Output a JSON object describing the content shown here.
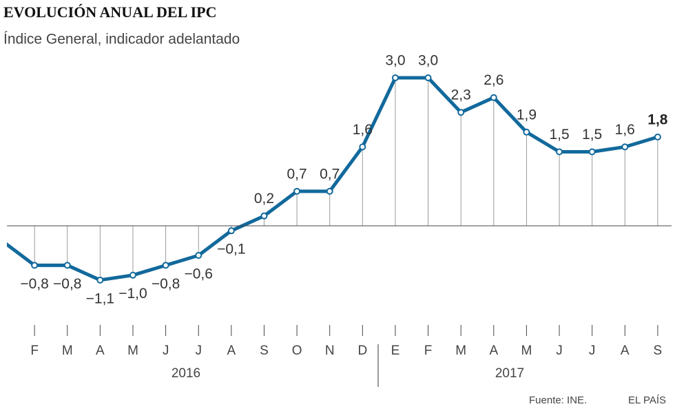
{
  "chart_data": {
    "type": "line",
    "title": "EVOLUCIÓN ANUAL DEL IPC",
    "subtitle": "Índice General, indicador adelantado",
    "categories": [
      null,
      "F",
      "M",
      "A",
      "M",
      "J",
      "J",
      "A",
      "S",
      "O",
      "N",
      "D",
      "E",
      "F",
      "M",
      "A",
      "M",
      "J",
      "J",
      "A",
      "S"
    ],
    "years": [
      "2016",
      "2017"
    ],
    "series": [
      {
        "name": "IPC",
        "color": "#12699c",
        "values": [
          -0.3,
          -0.8,
          -0.8,
          -1.1,
          -1.0,
          -0.8,
          -0.6,
          -0.1,
          0.2,
          0.7,
          0.7,
          1.6,
          3.0,
          3.0,
          2.3,
          2.6,
          1.9,
          1.5,
          1.5,
          1.6,
          1.8
        ],
        "value_labels": [
          null,
          "−0,8",
          "−0,8",
          "−1,1",
          "−1,0",
          "−0,8",
          "−0,6",
          "−0,1",
          "0,2",
          "0,7",
          "0,7",
          "1,6",
          "3,0",
          "3,0",
          "2,3",
          "2,6",
          "1,9",
          "1,5",
          "1,5",
          "1,6",
          "1,8"
        ]
      }
    ],
    "ylim": [
      -1.5,
      3.5
    ],
    "source": "Fuente: INE.",
    "credit": "EL PAÍS"
  }
}
